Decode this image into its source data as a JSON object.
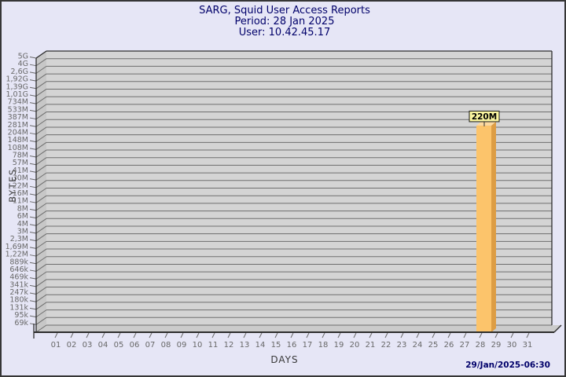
{
  "header": {
    "title_line1": "SARG, Squid User Access Reports",
    "title_line2": "Period: 28 Jan 2025",
    "title_line3": "User: 10.42.45.17"
  },
  "footer": {
    "timestamp": "29/Jan/2025-06:30"
  },
  "chart_data": {
    "type": "bar",
    "title": "SARG, Squid User Access Reports",
    "subtitle": [
      "Period: 28 Jan 2025",
      "User: 10.42.45.17"
    ],
    "xlabel": "DAYS",
    "ylabel": "BYTES",
    "x_ticks": [
      "01",
      "02",
      "03",
      "04",
      "05",
      "06",
      "07",
      "08",
      "09",
      "10",
      "11",
      "12",
      "13",
      "14",
      "15",
      "16",
      "17",
      "18",
      "19",
      "20",
      "21",
      "22",
      "23",
      "24",
      "25",
      "26",
      "27",
      "28",
      "29",
      "30",
      "31"
    ],
    "y_ticks": [
      "5G",
      "4G",
      "2,6G",
      "1,92G",
      "1,39G",
      "1,01G",
      "734M",
      "533M",
      "387M",
      "281M",
      "204M",
      "148M",
      "108M",
      "78M",
      "57M",
      "41M",
      "30M",
      "22M",
      "16M",
      "11M",
      "8M",
      "6M",
      "4M",
      "3M",
      "2,3M",
      "1,69M",
      "1,22M",
      "889k",
      "646k",
      "469k",
      "341k",
      "247k",
      "180k",
      "131k",
      "95k",
      "69k"
    ],
    "y_scale": "log-stepped",
    "grid": "horizontal",
    "style": "3d-bar",
    "bars": [
      {
        "day": "28",
        "label": "220M",
        "value_bytes": 220000000
      }
    ],
    "colors": {
      "page_bg": "#e6e6f6",
      "plot_bg": "#d4d4d4",
      "grid_line": "#6e6e6e",
      "wall": "#c7c7c7",
      "floor": "#cbcbcb",
      "edge": "#2d2d2d",
      "tick_text": "#686868",
      "bar_front": "#fcc46b",
      "bar_side": "#dd9d44",
      "bar_top": "#fcd9a0",
      "value_label_bg": "#faf5a0",
      "value_label_border": "#1a1a1a",
      "value_label_text": "#000000",
      "title_text": "#00006a"
    }
  }
}
